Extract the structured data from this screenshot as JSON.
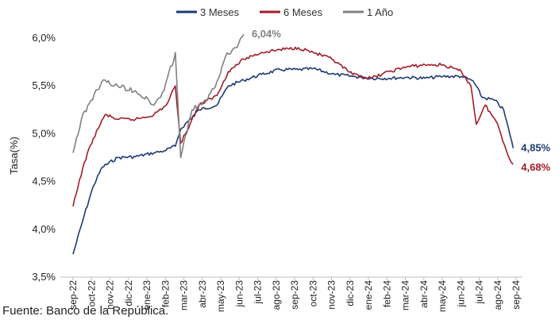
{
  "chart_data": {
    "type": "line",
    "ylabel": "Tasa(%)",
    "ylim": [
      3.5,
      6.0
    ],
    "yticks": [
      "3,5%",
      "4,0%",
      "4,5%",
      "5,0%",
      "5,5%",
      "6,0%"
    ],
    "x_range": [
      "2022-09",
      "2024-09"
    ],
    "x_tick_labels": [
      "sep-22",
      "oct-22",
      "nov-22",
      "dic-22",
      "ene-23",
      "feb-23",
      "mar-23",
      "abr-23",
      "may-23",
      "jun-23",
      "jul-23",
      "ago-23",
      "sep-23",
      "oct-23",
      "nov-23",
      "dic-23",
      "ene-24",
      "feb-24",
      "mar-24",
      "abr-24",
      "may-24",
      "jun-24",
      "jul-24",
      "ago-24",
      "sep-24"
    ],
    "legend_position": "top",
    "grid": false,
    "series": [
      {
        "name": "3 Meses",
        "color": "#1f3b73",
        "x": [
          "2022-09-01",
          "2022-09-20",
          "2022-10-05",
          "2022-10-20",
          "2022-11-15",
          "2022-12-15",
          "2023-01-15",
          "2023-02-01",
          "2023-02-20",
          "2023-03-01",
          "2023-04-01",
          "2023-05-01",
          "2023-05-20",
          "2023-06-15",
          "2023-07-15",
          "2023-08-15",
          "2023-09-15",
          "2023-10-10",
          "2023-11-15",
          "2023-12-15",
          "2024-01-15",
          "2024-02-15",
          "2024-03-15",
          "2024-04-15",
          "2024-05-15",
          "2024-06-15",
          "2024-07-05",
          "2024-07-20",
          "2024-08-10",
          "2024-08-25",
          "2024-09-05",
          "2024-09-10"
        ],
        "values": [
          3.74,
          4.15,
          4.45,
          4.65,
          4.75,
          4.76,
          4.8,
          4.82,
          4.87,
          5.05,
          5.25,
          5.3,
          5.5,
          5.56,
          5.62,
          5.67,
          5.67,
          5.68,
          5.62,
          5.6,
          5.58,
          5.58,
          5.59,
          5.58,
          5.6,
          5.6,
          5.55,
          5.38,
          5.35,
          5.25,
          4.98,
          4.85
        ]
      },
      {
        "name": "6 Meses",
        "color": "#a21c2a",
        "x": [
          "2022-09-01",
          "2022-09-20",
          "2022-10-05",
          "2022-10-25",
          "2022-11-15",
          "2022-12-15",
          "2023-01-15",
          "2023-02-05",
          "2023-02-20",
          "2023-03-01",
          "2023-04-01",
          "2023-05-01",
          "2023-05-20",
          "2023-06-15",
          "2023-07-15",
          "2023-08-15",
          "2023-09-15",
          "2023-10-10",
          "2023-11-10",
          "2023-12-15",
          "2024-01-15",
          "2024-02-15",
          "2024-03-15",
          "2024-04-15",
          "2024-05-15",
          "2024-06-15",
          "2024-07-01",
          "2024-07-10",
          "2024-07-25",
          "2024-08-15",
          "2024-09-01",
          "2024-09-10"
        ],
        "values": [
          4.24,
          4.7,
          4.95,
          5.2,
          5.15,
          5.15,
          5.2,
          5.3,
          5.5,
          4.9,
          5.3,
          5.4,
          5.65,
          5.78,
          5.85,
          5.88,
          5.9,
          5.85,
          5.78,
          5.62,
          5.58,
          5.65,
          5.7,
          5.72,
          5.72,
          5.65,
          5.5,
          5.1,
          5.3,
          5.1,
          4.78,
          4.68
        ]
      },
      {
        "name": "1 Año",
        "color": "#808080",
        "x": [
          "2022-09-01",
          "2022-09-15",
          "2022-10-01",
          "2022-10-20",
          "2022-11-15",
          "2022-12-15",
          "2023-01-15",
          "2023-02-01",
          "2023-02-20",
          "2023-03-01",
          "2023-03-20",
          "2023-04-15",
          "2023-05-01",
          "2023-05-15",
          "2023-06-01",
          "2023-06-15"
        ],
        "values": [
          4.8,
          5.15,
          5.35,
          5.55,
          5.5,
          5.45,
          5.3,
          5.45,
          5.85,
          4.75,
          5.25,
          5.35,
          5.55,
          5.8,
          5.9,
          6.04
        ]
      }
    ],
    "annotations": [
      {
        "text": "6,04%",
        "series": "1 Año",
        "color": "#808080"
      },
      {
        "text": "4,85%",
        "series": "3 Meses",
        "color": "#1f3b73"
      },
      {
        "text": "4,68%",
        "series": "6 Meses",
        "color": "#a21c2a"
      }
    ]
  },
  "source_text": "Fuente: Banco de la República."
}
